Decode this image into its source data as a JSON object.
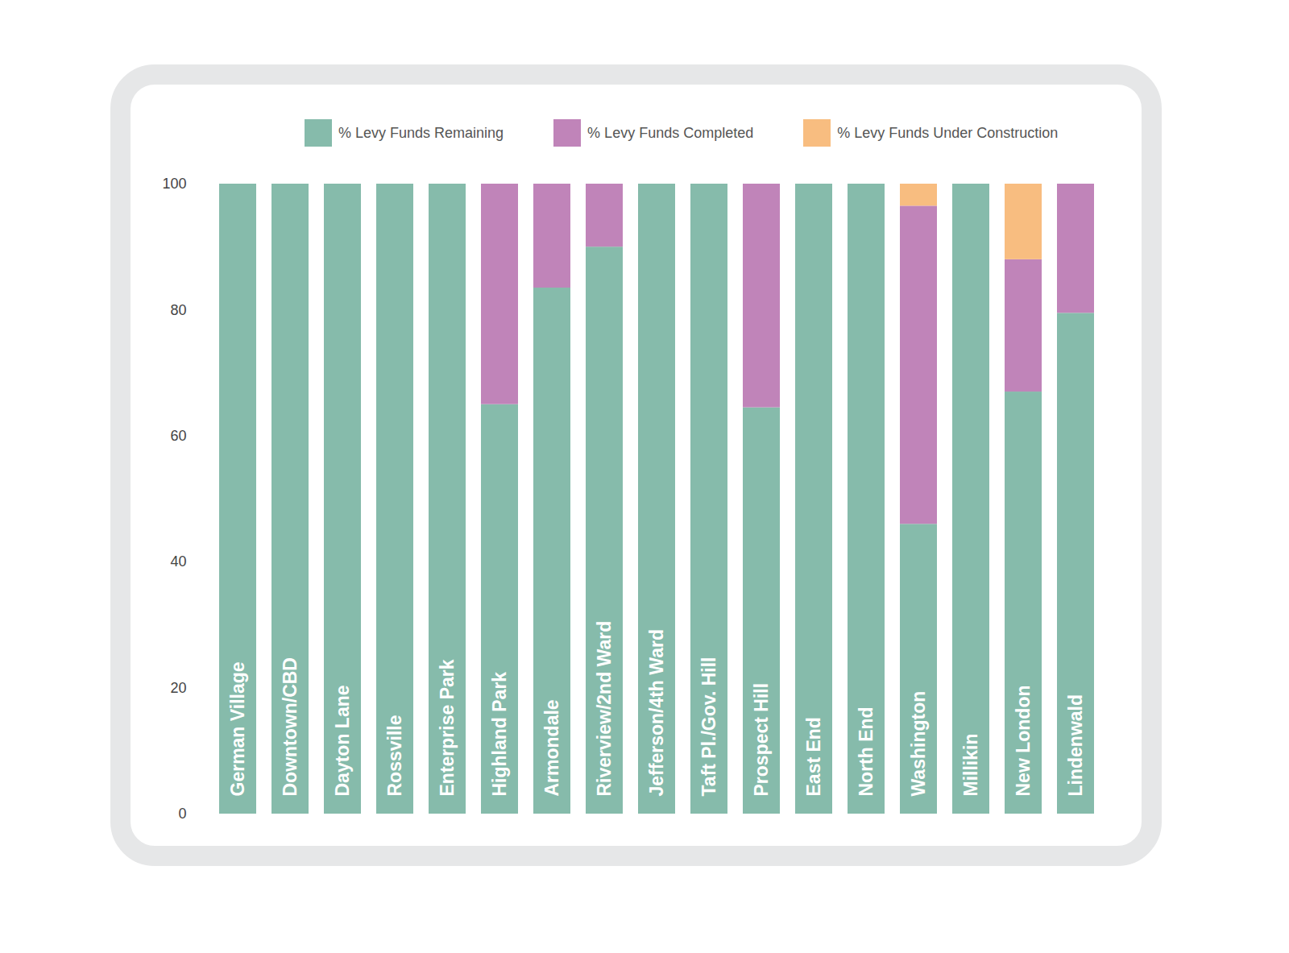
{
  "chart_data": {
    "type": "bar",
    "stacked": true,
    "tick_labels": "y",
    "grid": false,
    "legend": "top",
    "categories": [
      "German Village",
      "Downtown/CBD",
      "Dayton Lane",
      "Rossville",
      "Enterprise Park",
      "Highland Park",
      "Armondale",
      "Riverview/2nd Ward",
      "Jefferson/4th Ward",
      "Taft Pl./Gov. Hill",
      "Prospect Hill",
      "East End",
      "North End",
      "Washington",
      "Millikin",
      "New London",
      "Lindenwald"
    ],
    "series": [
      {
        "name": "% Levy Funds Remaining",
        "color": "#86bbab",
        "values": [
          100,
          100,
          100,
          100,
          100,
          65,
          83.5,
          90,
          100,
          100,
          64.5,
          100,
          100,
          46,
          100,
          67,
          79.5
        ]
      },
      {
        "name": "% Levy Funds Completed",
        "color": "#c084b9",
        "values": [
          0,
          0,
          0,
          0,
          0,
          35,
          16.5,
          10,
          0,
          0,
          35.5,
          0,
          0,
          50.5,
          0,
          21,
          20.5
        ]
      },
      {
        "name": "% Levy Funds Under Construction",
        "color": "#f8bd80",
        "values": [
          0,
          0,
          0,
          0,
          0,
          0,
          0,
          0,
          0,
          0,
          0,
          0,
          0,
          3.5,
          0,
          12,
          0
        ]
      }
    ],
    "ylim": [
      0,
      100
    ],
    "yticks": [
      0,
      20,
      40,
      60,
      80,
      100
    ]
  }
}
